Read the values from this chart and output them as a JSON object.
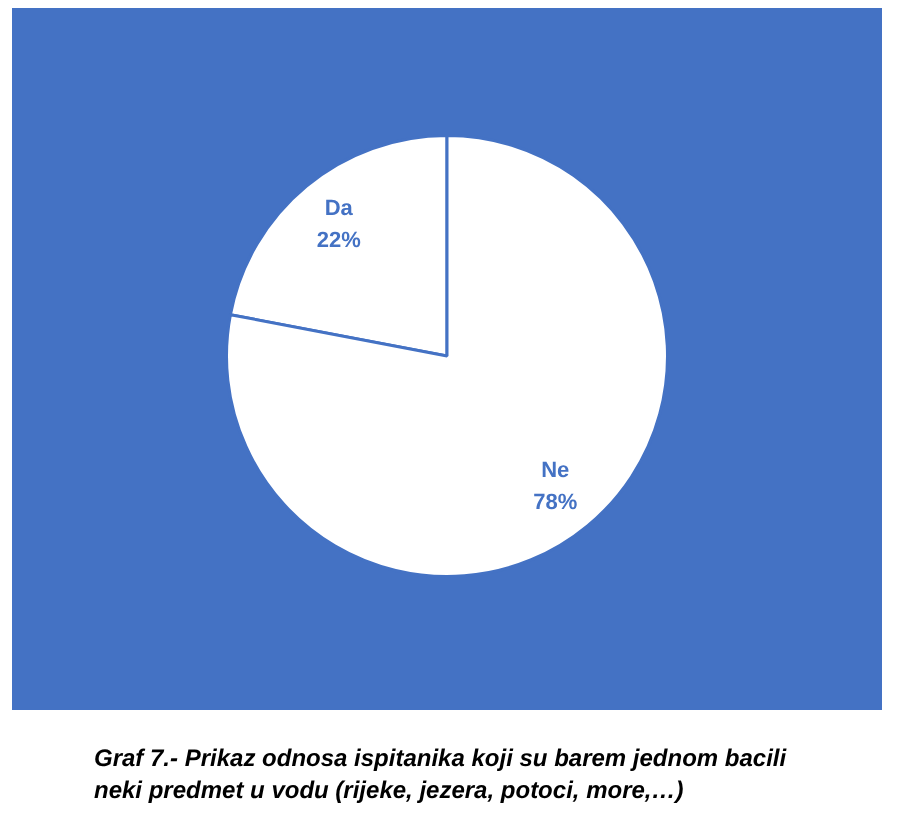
{
  "chart_data": {
    "type": "pie",
    "categories": [
      "Da",
      "Ne"
    ],
    "values": [
      22,
      78
    ],
    "colors": [
      "#ffffff",
      "#ffffff"
    ],
    "value_labels": [
      "22%",
      "78%"
    ],
    "annotations": [
      "Graf 7.- Prikaz odnosa ispitanika koji su barem jednom bacili neki predmet u vodu (rijeke, jezera, potoci, more,…)"
    ]
  }
}
